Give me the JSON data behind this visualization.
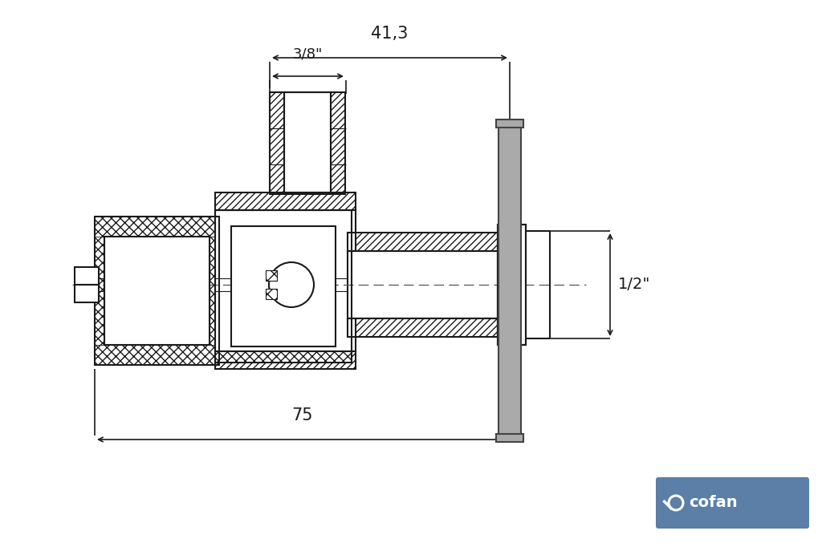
{
  "bg_color": "#ffffff",
  "line_color": "#1a1a1a",
  "handle_fill": "#aaaaaa",
  "cofan_bg": "#5b7fa6",
  "cofan_text": "#ffffff",
  "dim_41_3": "41,3",
  "dim_3_8": "3/8\"",
  "dim_1_2": "1/2\"",
  "dim_75": "75",
  "figsize": [
    10.24,
    6.82
  ],
  "dpi": 100
}
